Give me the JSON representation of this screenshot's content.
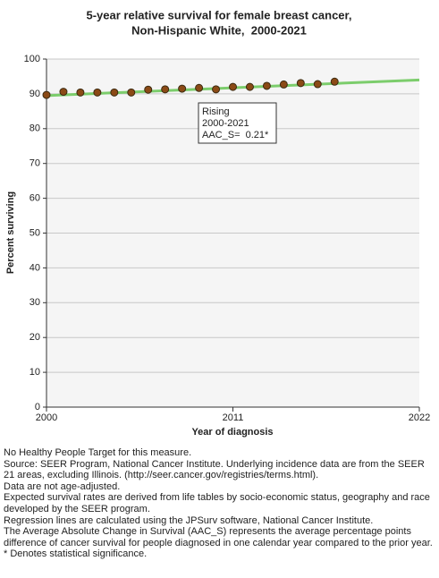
{
  "chart_data": {
    "type": "scatter",
    "title": "5-year relative survival for female breast cancer,",
    "subtitle": "Non-Hispanic White,  2000-2021",
    "x_label": "Year of diagnosis",
    "y_label": "Percent surviving",
    "xlim": [
      2000,
      2022
    ],
    "xticks": [
      2000,
      2011,
      2022
    ],
    "ylim": [
      0,
      100
    ],
    "yticks": [
      0,
      10,
      20,
      30,
      40,
      50,
      60,
      70,
      80,
      90,
      100
    ],
    "grid": true,
    "series": [
      {
        "type": "scatter",
        "color": "#8b4a16",
        "x": [
          2000,
          2001,
          2002,
          2003,
          2004,
          2005,
          2006,
          2007,
          2008,
          2009,
          2010,
          2011,
          2012,
          2013,
          2014,
          2015,
          2016,
          2017
        ],
        "values": [
          89.7,
          90.6,
          90.4,
          90.4,
          90.4,
          90.4,
          91.2,
          91.3,
          91.5,
          91.7,
          91.3,
          92.0,
          92.0,
          92.3,
          92.7,
          93.1,
          92.8,
          93.5
        ]
      },
      {
        "type": "line",
        "color": "#7ccd6c",
        "x": [
          2000,
          2022
        ],
        "values": [
          89.5,
          94.0
        ]
      }
    ],
    "annotation": [
      "Rising",
      "2000-2021",
      "AAC_S=  0.21*"
    ]
  },
  "footnotes": [
    "No Healthy People Target for this measure.",
    "Source: SEER Program, National Cancer Institute. Underlying incidence data are from the SEER 21 areas, excluding Illinois. (http://seer.cancer.gov/registries/terms.html).",
    "Data are not age-adjusted.",
    "Expected survival rates are derived from life tables by socio-economic status, geography and race developed by the SEER program.",
    "Regression lines are calculated using the JPSurv software, National Cancer Institute.",
    "The Average Absolute Change in Survival (AAC_S) represents the average percentage points difference of cancer survival for people diagnosed in one calendar year compared to the prior year.",
    "* Denotes statistical significance."
  ]
}
